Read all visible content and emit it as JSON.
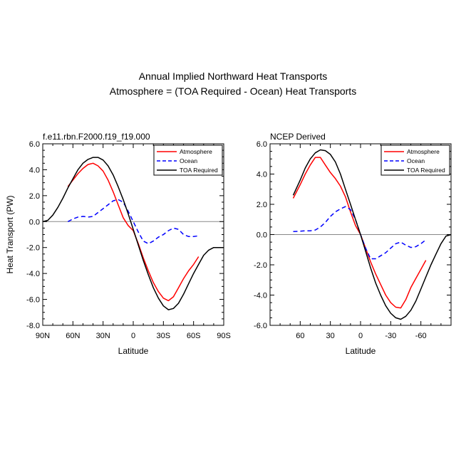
{
  "figure": {
    "title_line1": "Annual Implied Northward Heat Transports",
    "title_line2": "Atmosphere = (TOA Required - Ocean) Heat Transports"
  },
  "chart_data": [
    {
      "type": "line",
      "title": "f.e11.rbn.F2000.f19_f19.000",
      "xlabel": "Latitude",
      "ylabel": "Heat Transport (PW)",
      "xlim": [
        90,
        -90
      ],
      "ylim": [
        -8,
        6
      ],
      "xticks": [
        90,
        60,
        30,
        0,
        -30,
        -60,
        -90
      ],
      "xtick_labels": [
        "90N",
        "60N",
        "30N",
        "0",
        "30S",
        "60S",
        "90S"
      ],
      "yticks": [
        6,
        4,
        2,
        0,
        -2,
        -4,
        -6,
        -8
      ],
      "ytick_labels": [
        "6.0",
        "4.0",
        "2.0",
        "0.0",
        "-2.0",
        "-4.0",
        "-6.0",
        "-8.0"
      ],
      "legend_position": "top-right",
      "series": [
        {
          "name": "Atmosphere",
          "color": "#ff0000",
          "dash": "solid",
          "x": [
            65,
            60,
            55,
            50,
            45,
            40,
            35,
            30,
            25,
            20,
            15,
            10,
            5,
            0,
            -5,
            -10,
            -15,
            -20,
            -25,
            -30,
            -35,
            -40,
            -45,
            -50,
            -55,
            -60,
            -65
          ],
          "y": [
            2.7,
            3.2,
            3.7,
            4.1,
            4.4,
            4.5,
            4.3,
            3.9,
            3.2,
            2.3,
            1.3,
            0.3,
            -0.3,
            -0.7,
            -1.7,
            -2.8,
            -3.8,
            -4.7,
            -5.4,
            -5.9,
            -6.1,
            -5.8,
            -5.1,
            -4.4,
            -3.8,
            -3.3,
            -2.7
          ]
        },
        {
          "name": "Ocean",
          "color": "#0000ff",
          "dash": "dashed",
          "x": [
            65,
            60,
            55,
            50,
            45,
            40,
            35,
            30,
            25,
            20,
            15,
            10,
            5,
            0,
            -5,
            -10,
            -15,
            -20,
            -25,
            -30,
            -35,
            -40,
            -45,
            -50,
            -55,
            -60,
            -65
          ],
          "y": [
            0.0,
            0.2,
            0.35,
            0.4,
            0.35,
            0.4,
            0.7,
            1.0,
            1.3,
            1.6,
            1.7,
            1.5,
            0.8,
            0.0,
            -0.8,
            -1.5,
            -1.7,
            -1.5,
            -1.2,
            -1.0,
            -0.7,
            -0.5,
            -0.6,
            -1.0,
            -1.15,
            -1.15,
            -1.1
          ]
        },
        {
          "name": "TOA Required",
          "color": "#000000",
          "dash": "solid",
          "x": [
            90,
            85,
            80,
            75,
            70,
            65,
            60,
            55,
            50,
            45,
            40,
            35,
            30,
            25,
            20,
            15,
            10,
            5,
            0,
            -5,
            -10,
            -15,
            -20,
            -25,
            -30,
            -35,
            -40,
            -45,
            -50,
            -55,
            -60,
            -65,
            -70,
            -75,
            -80,
            -85,
            -90
          ],
          "y": [
            0.0,
            0.1,
            0.5,
            1.1,
            1.8,
            2.6,
            3.3,
            4.0,
            4.5,
            4.8,
            4.95,
            4.95,
            4.75,
            4.3,
            3.6,
            2.7,
            1.7,
            0.6,
            -0.6,
            -1.8,
            -3.0,
            -4.1,
            -5.1,
            -5.9,
            -6.5,
            -6.8,
            -6.7,
            -6.3,
            -5.6,
            -4.8,
            -4.0,
            -3.3,
            -2.6,
            -2.2,
            -2.0,
            -2.0,
            -2.0
          ]
        }
      ]
    },
    {
      "type": "line",
      "title": "NCEP Derived",
      "xlabel": "Latitude",
      "ylabel": "",
      "xlim": [
        90,
        -90
      ],
      "ylim": [
        -6,
        6
      ],
      "xticks": [
        60,
        30,
        0,
        -30,
        -60
      ],
      "xtick_labels": [
        "60",
        "30",
        "0",
        "-30",
        "-60"
      ],
      "yticks": [
        6,
        4,
        2,
        0,
        -2,
        -4,
        -6
      ],
      "ytick_labels": [
        "6.0",
        "4.0",
        "2.0",
        "0.0",
        "-2.0",
        "-4.0",
        "-6.0"
      ],
      "legend_position": "top-right",
      "series": [
        {
          "name": "Atmosphere",
          "color": "#ff0000",
          "dash": "solid",
          "x": [
            67,
            60,
            55,
            50,
            45,
            40,
            35,
            30,
            25,
            20,
            15,
            10,
            5,
            0,
            -5,
            -10,
            -15,
            -20,
            -25,
            -30,
            -35,
            -40,
            -45,
            -50,
            -55,
            -60,
            -65
          ],
          "y": [
            2.4,
            3.3,
            4.0,
            4.6,
            5.1,
            5.1,
            4.6,
            4.1,
            3.7,
            3.2,
            2.5,
            1.5,
            0.6,
            0.0,
            -0.9,
            -1.8,
            -2.6,
            -3.3,
            -4.0,
            -4.5,
            -4.8,
            -4.85,
            -4.3,
            -3.5,
            -2.9,
            -2.3,
            -1.7
          ]
        },
        {
          "name": "Ocean",
          "color": "#0000ff",
          "dash": "dashed",
          "x": [
            67,
            60,
            55,
            50,
            45,
            40,
            35,
            30,
            25,
            20,
            15,
            10,
            5,
            0,
            -5,
            -10,
            -15,
            -20,
            -25,
            -30,
            -35,
            -40,
            -45,
            -50,
            -55,
            -60,
            -65
          ],
          "y": [
            0.2,
            0.22,
            0.25,
            0.25,
            0.3,
            0.5,
            0.8,
            1.2,
            1.5,
            1.7,
            1.85,
            1.65,
            1.0,
            0.0,
            -0.9,
            -1.6,
            -1.6,
            -1.4,
            -1.2,
            -0.9,
            -0.6,
            -0.5,
            -0.7,
            -0.85,
            -0.8,
            -0.6,
            -0.35
          ]
        },
        {
          "name": "TOA Required",
          "color": "#000000",
          "dash": "solid",
          "x": [
            67,
            60,
            55,
            50,
            45,
            40,
            35,
            30,
            25,
            20,
            15,
            10,
            5,
            0,
            -5,
            -10,
            -15,
            -20,
            -25,
            -30,
            -35,
            -40,
            -45,
            -50,
            -55,
            -60,
            -65,
            -70,
            -75,
            -80,
            -85,
            -90
          ],
          "y": [
            2.6,
            3.6,
            4.4,
            5.0,
            5.4,
            5.6,
            5.55,
            5.3,
            4.8,
            4.0,
            3.0,
            2.0,
            1.0,
            0.0,
            -1.1,
            -2.2,
            -3.2,
            -4.0,
            -4.7,
            -5.2,
            -5.5,
            -5.6,
            -5.4,
            -5.0,
            -4.4,
            -3.6,
            -2.8,
            -2.0,
            -1.3,
            -0.6,
            -0.1,
            0.0
          ]
        }
      ]
    }
  ]
}
